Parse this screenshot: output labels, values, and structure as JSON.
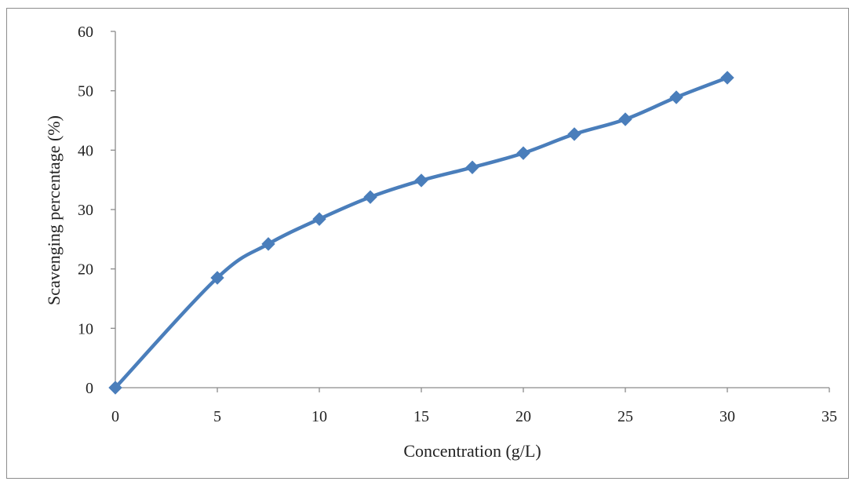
{
  "chart_data": {
    "type": "line",
    "title": "",
    "xlabel": "Concentration (g/L)",
    "ylabel": "Scavenging percentage (%)",
    "xlim": [
      0,
      35
    ],
    "ylim": [
      0,
      60
    ],
    "x_ticks": [
      0,
      5,
      10,
      15,
      20,
      25,
      30,
      35
    ],
    "y_ticks": [
      0,
      10,
      20,
      30,
      40,
      50,
      60
    ],
    "grid": false,
    "legend": "none",
    "marker": "diamond",
    "series": [
      {
        "color": "#4a7ebb",
        "x": [
          0,
          5,
          7.5,
          10,
          12.5,
          15,
          17.5,
          20,
          22.5,
          25,
          27.5,
          30
        ],
        "y": [
          0,
          18.5,
          24.2,
          28.4,
          32.1,
          34.9,
          37.1,
          39.5,
          42.7,
          45.2,
          48.9,
          52.2
        ]
      }
    ]
  }
}
